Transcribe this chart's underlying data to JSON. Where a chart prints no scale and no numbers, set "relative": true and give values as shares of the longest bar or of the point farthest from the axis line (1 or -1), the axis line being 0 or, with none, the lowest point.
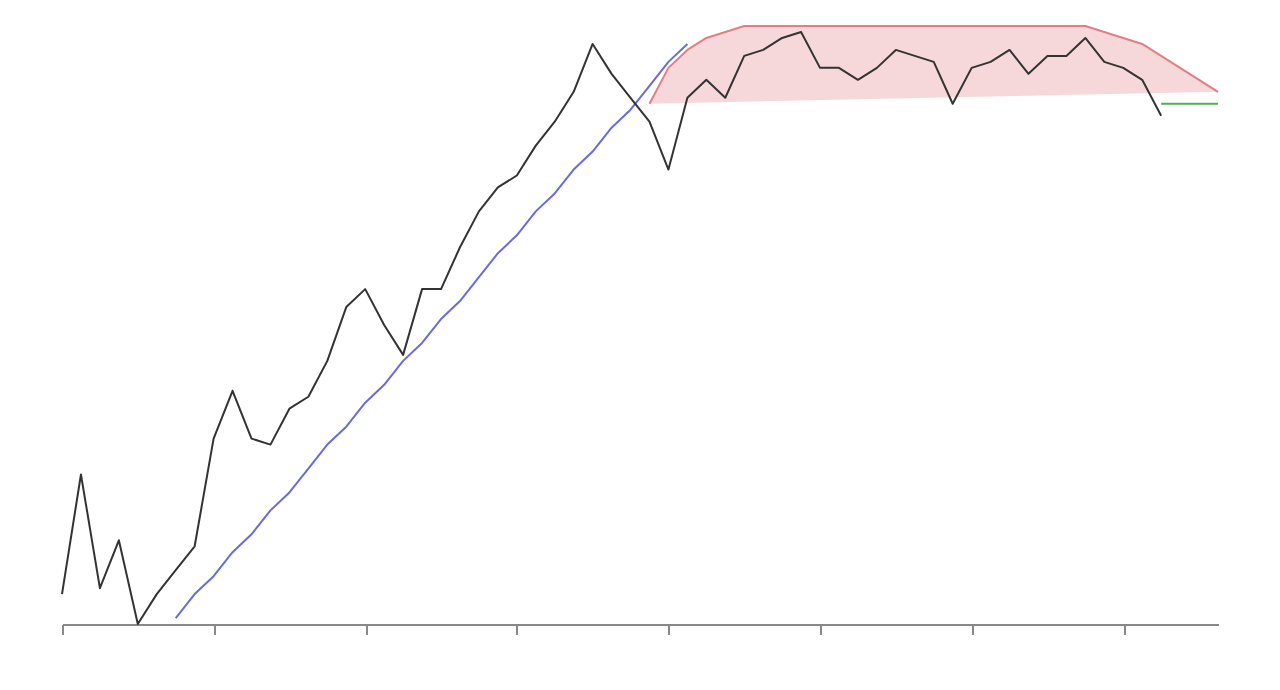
{
  "chart_data": {
    "type": "line",
    "relative": true,
    "grid": false,
    "marker": "none",
    "categories": [
      null,
      null,
      null,
      null,
      null,
      null,
      null,
      null,
      null,
      null,
      null,
      null,
      null,
      null,
      null,
      null,
      null,
      null,
      null,
      null,
      null,
      null,
      null,
      null,
      null,
      null,
      null,
      null,
      null,
      null,
      null,
      null,
      null,
      null,
      null,
      null,
      null,
      null,
      null,
      null,
      null,
      null,
      null,
      null,
      null,
      null,
      null,
      null,
      null,
      null,
      null,
      null,
      null,
      null,
      null,
      null,
      null,
      null,
      null,
      null,
      null,
      null
    ],
    "series": [
      {
        "color": "#e07f86",
        "values": [
          null,
          null,
          null,
          null,
          null,
          null,
          null,
          null,
          null,
          null,
          null,
          null,
          null,
          null,
          null,
          null,
          null,
          null,
          null,
          null,
          null,
          null,
          null,
          null,
          null,
          null,
          null,
          null,
          null,
          null,
          null,
          0.87,
          0.93,
          0.96,
          0.98,
          0.99,
          1,
          1,
          1,
          1,
          1,
          1,
          1,
          1,
          1,
          1,
          1,
          1,
          1,
          1,
          1,
          1,
          1,
          1,
          1,
          0.99,
          0.98,
          0.97,
          0.95,
          0.93,
          0.91,
          0.89
        ]
      },
      {
        "color": "#6b6bd6",
        "values": [
          null,
          null,
          null,
          null,
          null,
          null,
          0.01,
          0.05,
          0.08,
          0.12,
          0.15,
          0.19,
          0.22,
          0.26,
          0.3,
          0.33,
          0.37,
          0.4,
          0.44,
          0.47,
          0.51,
          0.54,
          0.58,
          0.62,
          0.65,
          0.69,
          0.72,
          0.76,
          0.79,
          0.83,
          0.86,
          0.9,
          0.94,
          0.97,
          null,
          null,
          null,
          null,
          null,
          null,
          null,
          null,
          null,
          null,
          null,
          null,
          null,
          null,
          null,
          null,
          null,
          null,
          null,
          null,
          null,
          null,
          null,
          null,
          null,
          null,
          null,
          null
        ]
      },
      {
        "color": "#333333",
        "values": [
          0.05,
          0.25,
          0.06,
          0.14,
          0,
          0.05,
          0.09,
          0.13,
          0.31,
          0.39,
          0.31,
          0.3,
          0.36,
          0.38,
          0.44,
          0.53,
          0.56,
          0.5,
          0.45,
          0.56,
          0.56,
          0.63,
          0.69,
          0.73,
          0.75,
          0.8,
          0.84,
          0.89,
          0.97,
          0.92,
          0.88,
          0.84,
          0.76,
          0.88,
          0.91,
          0.88,
          0.95,
          0.96,
          0.98,
          0.99,
          0.93,
          0.93,
          0.91,
          0.93,
          0.96,
          0.95,
          0.94,
          0.87,
          0.93,
          0.94,
          0.96,
          0.92,
          0.95,
          0.95,
          0.98,
          0.94,
          0.93,
          0.91,
          0.85,
          null,
          null,
          null
        ]
      },
      {
        "color": "#4caf50",
        "values": [
          null,
          null,
          null,
          null,
          null,
          null,
          null,
          null,
          null,
          null,
          null,
          null,
          null,
          null,
          null,
          null,
          null,
          null,
          null,
          null,
          null,
          null,
          null,
          null,
          null,
          null,
          null,
          null,
          null,
          null,
          null,
          null,
          null,
          null,
          null,
          null,
          null,
          null,
          null,
          null,
          null,
          null,
          null,
          null,
          null,
          null,
          null,
          null,
          null,
          null,
          null,
          null,
          null,
          null,
          null,
          null,
          null,
          null,
          0.87,
          0.87,
          0.87,
          0.87
        ]
      }
    ]
  }
}
